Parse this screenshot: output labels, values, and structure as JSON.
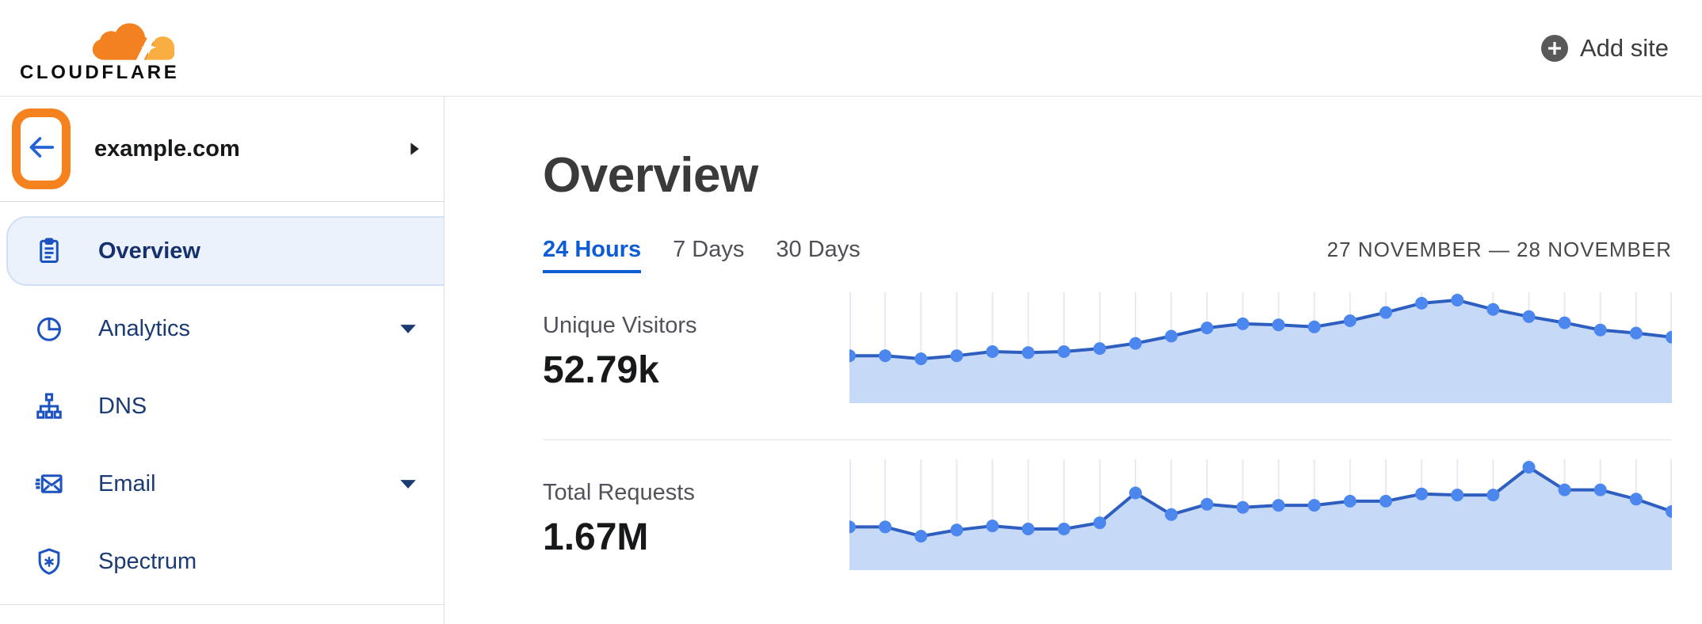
{
  "header": {
    "logo_text": "CLOUDFLARE",
    "add_site_label": "Add site"
  },
  "sidebar": {
    "domain": "example.com",
    "items": [
      {
        "label": "Overview",
        "icon": "clipboard",
        "active": true,
        "caret": false
      },
      {
        "label": "Analytics",
        "icon": "pie-chart",
        "active": false,
        "caret": true
      },
      {
        "label": "DNS",
        "icon": "dns-tree",
        "active": false,
        "caret": false
      },
      {
        "label": "Email",
        "icon": "email",
        "active": false,
        "caret": true
      },
      {
        "label": "Spectrum",
        "icon": "shield",
        "active": false,
        "caret": false
      }
    ]
  },
  "main": {
    "title": "Overview",
    "tabs": [
      {
        "label": "24 Hours",
        "active": true
      },
      {
        "label": "7 Days",
        "active": false
      },
      {
        "label": "30 Days",
        "active": false
      }
    ],
    "date_range": "27 NOVEMBER — 28 NOVEMBER"
  },
  "chart_data": [
    {
      "type": "area",
      "title": "Unique Visitors",
      "displayed_total": "52.79k",
      "x": "24 points across 27–28 November (hourly, no axis labels shown)",
      "ylabel": "",
      "xlabel": "",
      "legend": "none",
      "grid": "vertical gridline at each point",
      "values_normalized_pct": [
        46,
        46,
        43,
        46,
        50,
        49,
        50,
        53,
        58,
        65,
        73,
        77,
        76,
        74,
        80,
        88,
        97,
        100,
        91,
        84,
        78,
        71,
        68,
        64
      ]
    },
    {
      "type": "area",
      "title": "Total Requests",
      "displayed_total": "1.67M",
      "x": "24 points across 27–28 November (hourly, no axis labels shown)",
      "ylabel": "",
      "xlabel": "",
      "legend": "none",
      "grid": "vertical gridline at each point",
      "values_normalized_pct": [
        42,
        42,
        33,
        39,
        43,
        40,
        40,
        46,
        75,
        54,
        64,
        61,
        63,
        63,
        67,
        67,
        74,
        73,
        73,
        100,
        78,
        78,
        69,
        57
      ]
    }
  ],
  "colors": {
    "brand_orange": "#f6821f",
    "brand_orange_light": "#faad41",
    "accent_blue": "#0b5cd5",
    "nav_text_blue": "#1c3a74",
    "icon_blue": "#1d53c0",
    "active_pill_bg": "#ecf2fc",
    "active_pill_border": "#cfdff5",
    "chart_line": "#2e5fc0",
    "chart_dot": "#4b87ee",
    "chart_fill": "#c6d9f7",
    "chart_grid": "#e7eaf1",
    "divider": "#e2e2e2",
    "text_dark": "#17181a",
    "text_gray": "#52525b"
  }
}
